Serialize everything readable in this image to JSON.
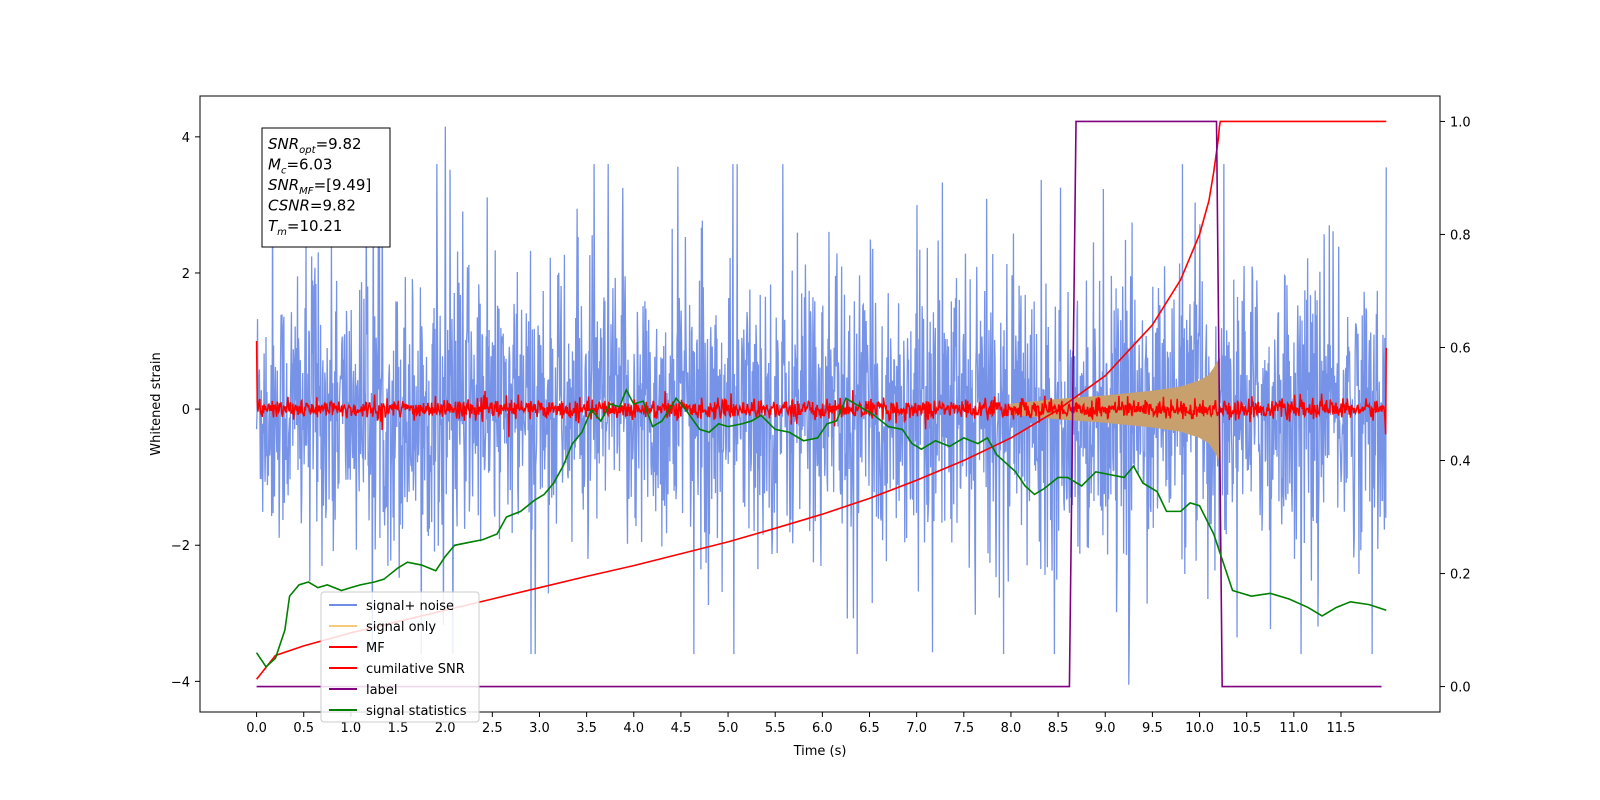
{
  "chart_data": {
    "type": "line",
    "xlabel": "Time (s)",
    "ylabel": "Whitened strain",
    "xlim": [
      -0.6,
      12.55
    ],
    "ylim": [
      -4.45,
      4.6
    ],
    "y2lim": [
      -0.045,
      1.045
    ],
    "x_ticks": [
      0.0,
      0.5,
      1.0,
      1.5,
      2.0,
      2.5,
      3.0,
      3.5,
      4.0,
      4.5,
      5.0,
      5.5,
      6.0,
      6.5,
      7.0,
      7.5,
      8.0,
      8.5,
      9.0,
      9.5,
      10.0,
      10.5,
      11.0,
      11.5
    ],
    "x_tick_labels": [
      "0.0",
      "0.5",
      "1.0",
      "1.5",
      "2.0",
      "2.5",
      "3.0",
      "3.5",
      "4.0",
      "4.5",
      "5.0",
      "5.5",
      "6.0",
      "6.5",
      "7.0",
      "7.5",
      "8.0",
      "8.5",
      "9.0",
      "9.5",
      "10.0",
      "10.5",
      "11.0",
      "11.5"
    ],
    "y_ticks": [
      -4,
      -2,
      0,
      2,
      4
    ],
    "y_tick_labels": [
      "−4",
      "−2",
      "0",
      "2",
      "4"
    ],
    "y2_ticks": [
      0.0,
      0.2,
      0.4,
      0.6,
      0.8,
      1.0
    ],
    "y2_tick_labels": [
      "0.0",
      "0.2",
      "0.4",
      "0.6",
      "0.8",
      "1.0"
    ],
    "grid": false,
    "legend_position": "lower-left",
    "legend": [
      {
        "label": "signal+ noise",
        "color": "#6f8de6"
      },
      {
        "label": "signal only",
        "color": "#f7c97a"
      },
      {
        "label": "MF",
        "color": "#ff0000"
      },
      {
        "label": "cumilative SNR",
        "color": "#ff0000"
      },
      {
        "label": "label",
        "color": "#800080"
      },
      {
        "label": "signal statistics",
        "color": "#008000"
      }
    ],
    "annotation": [
      {
        "name": "SNR",
        "sub": "opt",
        "value": "=9.82"
      },
      {
        "name": "M",
        "sub": "c",
        "value": "=6.03"
      },
      {
        "name": "SNR",
        "sub": "MF",
        "value": "=[9.49]"
      },
      {
        "name": "CSNR",
        "sub": "",
        "value": "=9.82"
      },
      {
        "name": "T",
        "sub": "m",
        "value": "=10.21"
      }
    ],
    "series": [
      {
        "name": "signal+ noise",
        "axis": "left",
        "color": "#6f8de6",
        "t_start": 0.0,
        "t_end": 11.98,
        "typical_amplitude": 1.8,
        "peak_max": 4.15,
        "peak_min": -4.05
      },
      {
        "name": "signal only",
        "axis": "left",
        "color": "#c8a06e",
        "t_start": 8.0,
        "t_end": 10.21,
        "envelope": [
          [
            8.0,
            0.08
          ],
          [
            8.5,
            0.15
          ],
          [
            9.0,
            0.2
          ],
          [
            9.5,
            0.27
          ],
          [
            9.8,
            0.33
          ],
          [
            10.0,
            0.42
          ],
          [
            10.1,
            0.5
          ],
          [
            10.15,
            0.6
          ],
          [
            10.2,
            0.72
          ],
          [
            10.21,
            0.75
          ]
        ]
      },
      {
        "name": "MF",
        "axis": "left",
        "color": "#ff0000",
        "t_start": 0.0,
        "t_end": 11.98,
        "start_value": 1.0,
        "end_value": 0.9,
        "noise_amplitude": 0.18
      },
      {
        "name": "cumilative SNR",
        "axis": "right",
        "color": "#ff0000",
        "points": [
          [
            0.0,
            0.013
          ],
          [
            0.2,
            0.055
          ],
          [
            0.5,
            0.072
          ],
          [
            1.0,
            0.095
          ],
          [
            1.5,
            0.115
          ],
          [
            2.0,
            0.135
          ],
          [
            2.5,
            0.155
          ],
          [
            3.0,
            0.175
          ],
          [
            3.5,
            0.195
          ],
          [
            4.0,
            0.214
          ],
          [
            4.5,
            0.235
          ],
          [
            5.0,
            0.256
          ],
          [
            5.5,
            0.28
          ],
          [
            6.0,
            0.305
          ],
          [
            6.5,
            0.333
          ],
          [
            7.0,
            0.365
          ],
          [
            7.5,
            0.4
          ],
          [
            8.0,
            0.44
          ],
          [
            8.5,
            0.49
          ],
          [
            9.0,
            0.55
          ],
          [
            9.5,
            0.64
          ],
          [
            9.8,
            0.72
          ],
          [
            10.0,
            0.8
          ],
          [
            10.1,
            0.86
          ],
          [
            10.15,
            0.91
          ],
          [
            10.2,
            0.97
          ],
          [
            10.21,
            0.99
          ],
          [
            10.22,
            1.0
          ],
          [
            11.98,
            1.0
          ]
        ]
      },
      {
        "name": "label",
        "axis": "right",
        "color": "#800080",
        "points": [
          [
            0.0,
            0.0
          ],
          [
            8.62,
            0.0
          ],
          [
            8.69,
            1.0
          ],
          [
            10.18,
            1.0
          ],
          [
            10.24,
            0.0
          ],
          [
            11.93,
            0.0
          ]
        ]
      },
      {
        "name": "signal statistics",
        "axis": "right",
        "color": "#008000",
        "points": [
          [
            0.0,
            0.06
          ],
          [
            0.1,
            0.035
          ],
          [
            0.2,
            0.05
          ],
          [
            0.3,
            0.1
          ],
          [
            0.35,
            0.16
          ],
          [
            0.45,
            0.18
          ],
          [
            0.55,
            0.185
          ],
          [
            0.65,
            0.175
          ],
          [
            0.75,
            0.18
          ],
          [
            0.9,
            0.17
          ],
          [
            1.0,
            0.175
          ],
          [
            1.1,
            0.18
          ],
          [
            1.25,
            0.185
          ],
          [
            1.35,
            0.19
          ],
          [
            1.5,
            0.21
          ],
          [
            1.6,
            0.22
          ],
          [
            1.75,
            0.215
          ],
          [
            1.9,
            0.205
          ],
          [
            2.0,
            0.23
          ],
          [
            2.1,
            0.25
          ],
          [
            2.25,
            0.255
          ],
          [
            2.4,
            0.26
          ],
          [
            2.55,
            0.27
          ],
          [
            2.65,
            0.3
          ],
          [
            2.8,
            0.31
          ],
          [
            2.95,
            0.33
          ],
          [
            3.05,
            0.34
          ],
          [
            3.15,
            0.36
          ],
          [
            3.25,
            0.39
          ],
          [
            3.35,
            0.43
          ],
          [
            3.45,
            0.45
          ],
          [
            3.55,
            0.49
          ],
          [
            3.65,
            0.47
          ],
          [
            3.75,
            0.5
          ],
          [
            3.85,
            0.495
          ],
          [
            3.92,
            0.525
          ],
          [
            4.0,
            0.5
          ],
          [
            4.1,
            0.505
          ],
          [
            4.2,
            0.46
          ],
          [
            4.3,
            0.47
          ],
          [
            4.45,
            0.51
          ],
          [
            4.55,
            0.49
          ],
          [
            4.7,
            0.455
          ],
          [
            4.8,
            0.45
          ],
          [
            4.9,
            0.465
          ],
          [
            5.0,
            0.46
          ],
          [
            5.15,
            0.465
          ],
          [
            5.25,
            0.47
          ],
          [
            5.35,
            0.48
          ],
          [
            5.5,
            0.455
          ],
          [
            5.65,
            0.45
          ],
          [
            5.8,
            0.435
          ],
          [
            5.95,
            0.44
          ],
          [
            6.05,
            0.465
          ],
          [
            6.15,
            0.47
          ],
          [
            6.25,
            0.51
          ],
          [
            6.4,
            0.495
          ],
          [
            6.55,
            0.48
          ],
          [
            6.7,
            0.46
          ],
          [
            6.85,
            0.455
          ],
          [
            6.95,
            0.43
          ],
          [
            7.05,
            0.42
          ],
          [
            7.2,
            0.435
          ],
          [
            7.35,
            0.425
          ],
          [
            7.5,
            0.44
          ],
          [
            7.65,
            0.43
          ],
          [
            7.75,
            0.44
          ],
          [
            7.85,
            0.41
          ],
          [
            7.95,
            0.395
          ],
          [
            8.05,
            0.38
          ],
          [
            8.15,
            0.355
          ],
          [
            8.25,
            0.34
          ],
          [
            8.35,
            0.35
          ],
          [
            8.5,
            0.37
          ],
          [
            8.6,
            0.37
          ],
          [
            8.75,
            0.355
          ],
          [
            8.9,
            0.38
          ],
          [
            9.05,
            0.375
          ],
          [
            9.2,
            0.37
          ],
          [
            9.3,
            0.39
          ],
          [
            9.4,
            0.36
          ],
          [
            9.55,
            0.345
          ],
          [
            9.65,
            0.31
          ],
          [
            9.8,
            0.31
          ],
          [
            9.9,
            0.325
          ],
          [
            10.0,
            0.32
          ],
          [
            10.15,
            0.27
          ],
          [
            10.25,
            0.22
          ],
          [
            10.35,
            0.17
          ],
          [
            10.55,
            0.16
          ],
          [
            10.75,
            0.165
          ],
          [
            10.95,
            0.155
          ],
          [
            11.15,
            0.14
          ],
          [
            11.3,
            0.125
          ],
          [
            11.45,
            0.14
          ],
          [
            11.6,
            0.15
          ],
          [
            11.8,
            0.145
          ],
          [
            11.98,
            0.135
          ]
        ]
      }
    ]
  }
}
